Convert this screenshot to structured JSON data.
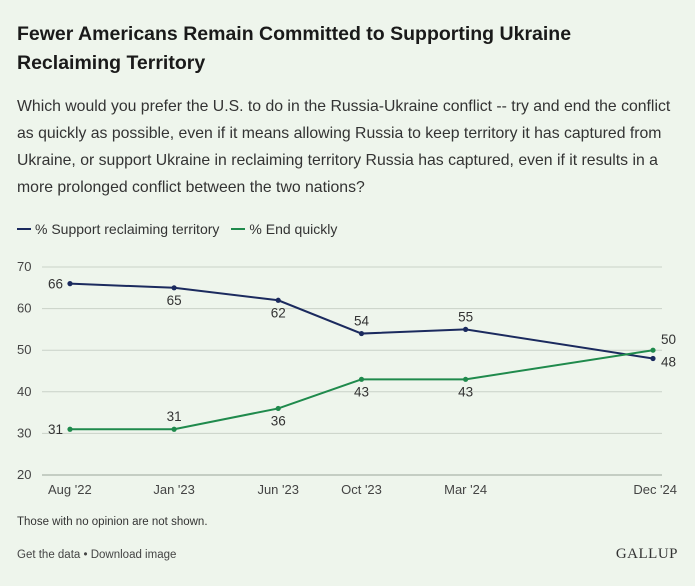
{
  "header": {
    "title": "Fewer Americans Remain Committed to Supporting Ukraine Reclaiming Territory",
    "subtitle": "Which would you prefer the U.S. to do in the Russia-Ukraine conflict -- try and end the conflict as quickly as possible, even if it means allowing Russia to keep territory it has captured from Ukraine, or support Ukraine in reclaiming territory Russia has captured, even if it results in a more prolonged conflict between the two nations?"
  },
  "legend": {
    "items": [
      {
        "label": "% Support reclaiming territory",
        "color": "#1b2a5e"
      },
      {
        "label": "% End quickly",
        "color": "#1f8a4c"
      }
    ]
  },
  "chart_data": {
    "type": "line",
    "x": [
      "Aug '22",
      "Jan '23",
      "Jun '23",
      "Oct '23",
      "Mar '24",
      "Dec '24"
    ],
    "x_months": [
      0,
      5,
      10,
      14,
      19,
      28
    ],
    "series": [
      {
        "name": "% Support reclaiming territory",
        "color": "#1b2a5e",
        "values": [
          66,
          65,
          62,
          54,
          55,
          48
        ]
      },
      {
        "name": "% End quickly",
        "color": "#1f8a4c",
        "values": [
          31,
          31,
          36,
          43,
          43,
          50
        ]
      }
    ],
    "ylim": [
      20,
      70
    ],
    "yticks": [
      20,
      30,
      40,
      50,
      60,
      70
    ],
    "grid": true,
    "legend_position": "top-left",
    "xlabel": "",
    "ylabel": ""
  },
  "footer": {
    "note": "Those with no opinion are not shown.",
    "get_data": "Get the data",
    "separator": " • ",
    "download": "Download image",
    "brand": "GALLUP"
  }
}
